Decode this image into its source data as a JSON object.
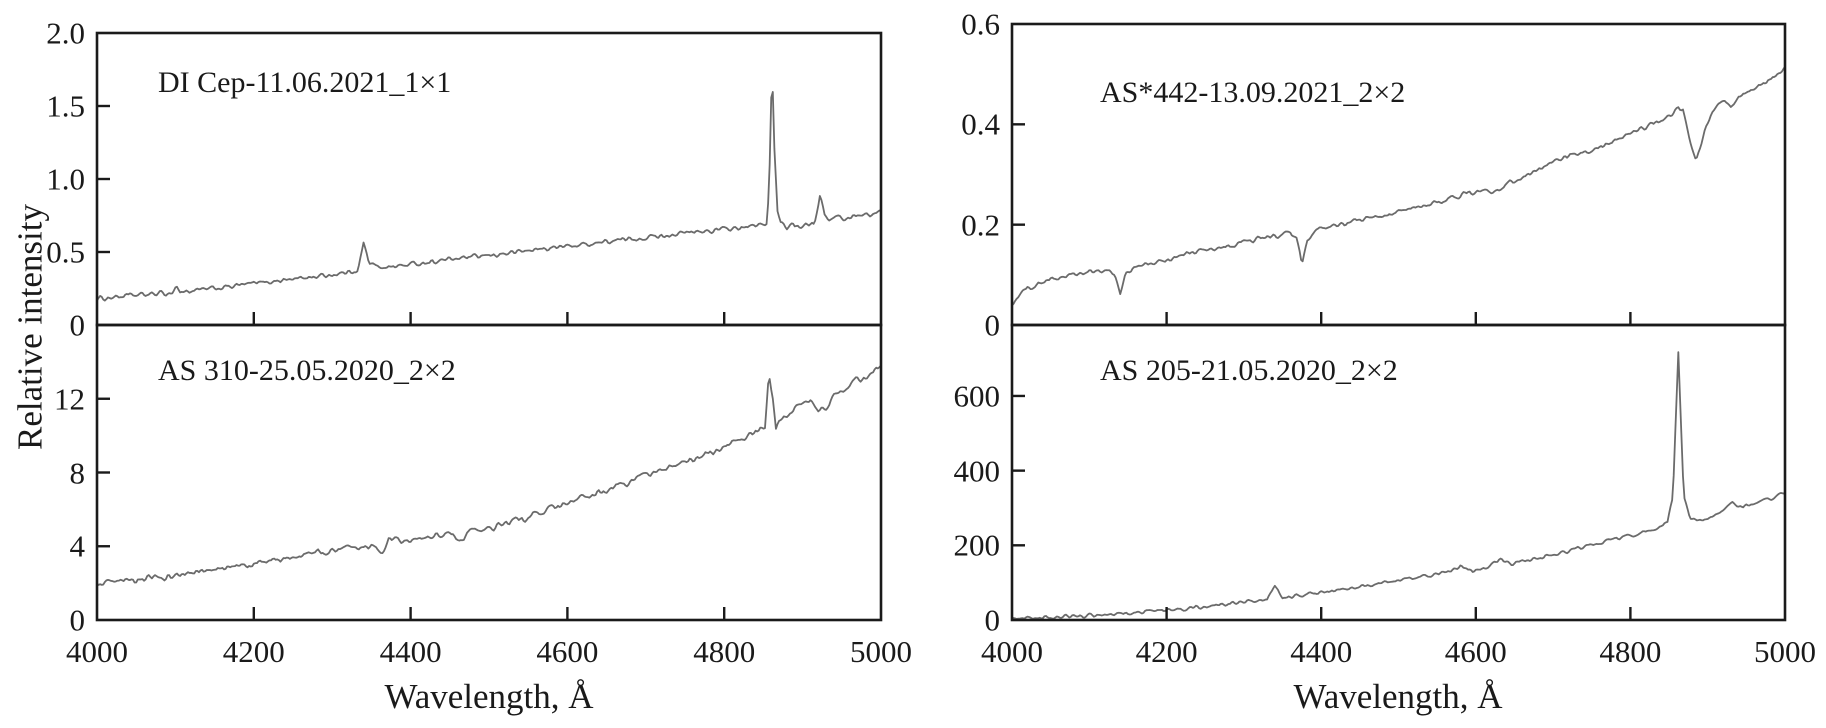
{
  "figure": {
    "ylabel": "Relative intensity",
    "xlabel": "Wavelength, Å",
    "colors": {
      "axis": "#1a1a1a",
      "curve": "#6b6b6b",
      "text": "#1a1a1a",
      "background": "#ffffff"
    }
  },
  "chart_data": {
    "type": "line",
    "xlabel": "Wavelength, Å",
    "ylabel": "Relative intensity",
    "xlim": [
      4000,
      5000
    ],
    "xticks": [
      4000,
      4200,
      4400,
      4600,
      4800,
      5000
    ],
    "xtick_labels": [
      "4000",
      "4200",
      "4400",
      "4600",
      "4800",
      "5000"
    ],
    "sample_step": 2,
    "panels": [
      {
        "label": "DI Cep-11.06.2021_1×1",
        "position": "top-left",
        "ylim": [
          0,
          2.0
        ],
        "yticks": [
          0,
          0.5,
          1.0,
          1.5,
          2.0
        ],
        "ytick_labels": [
          "0",
          "0.5",
          "1.0",
          "1.5",
          "2.0"
        ],
        "noise": 0.012,
        "anchors": [
          [
            4000,
            0.18
          ],
          [
            4040,
            0.2
          ],
          [
            4080,
            0.215
          ],
          [
            4096,
            0.22
          ],
          [
            4101,
            0.27
          ],
          [
            4106,
            0.225
          ],
          [
            4150,
            0.25
          ],
          [
            4200,
            0.285
          ],
          [
            4250,
            0.315
          ],
          [
            4300,
            0.345
          ],
          [
            4320,
            0.36
          ],
          [
            4333,
            0.38
          ],
          [
            4340,
            0.56
          ],
          [
            4347,
            0.43
          ],
          [
            4355,
            0.4
          ],
          [
            4380,
            0.4
          ],
          [
            4400,
            0.415
          ],
          [
            4450,
            0.45
          ],
          [
            4500,
            0.475
          ],
          [
            4550,
            0.51
          ],
          [
            4600,
            0.54
          ],
          [
            4650,
            0.57
          ],
          [
            4700,
            0.6
          ],
          [
            4750,
            0.63
          ],
          [
            4800,
            0.655
          ],
          [
            4830,
            0.67
          ],
          [
            4848,
            0.685
          ],
          [
            4855,
            0.7
          ],
          [
            4858,
            1.1
          ],
          [
            4861,
            1.78
          ],
          [
            4864,
            1.2
          ],
          [
            4868,
            0.78
          ],
          [
            4872,
            0.7
          ],
          [
            4880,
            0.665
          ],
          [
            4888,
            0.7
          ],
          [
            4895,
            0.67
          ],
          [
            4905,
            0.7
          ],
          [
            4915,
            0.7
          ],
          [
            4922,
            0.88
          ],
          [
            4928,
            0.76
          ],
          [
            4935,
            0.72
          ],
          [
            4945,
            0.745
          ],
          [
            4955,
            0.72
          ],
          [
            4970,
            0.76
          ],
          [
            4985,
            0.75
          ],
          [
            5000,
            0.78
          ]
        ]
      },
      {
        "label": "AS*442-13.09.2021_2×2",
        "position": "top-right",
        "ylim": [
          0,
          0.6
        ],
        "yticks": [
          0,
          0.2,
          0.4,
          0.6
        ],
        "ytick_labels": [
          "0",
          "0.2",
          "0.4",
          "0.6"
        ],
        "noise": 0.0035,
        "anchors": [
          [
            4000,
            0.042
          ],
          [
            4020,
            0.075
          ],
          [
            4050,
            0.09
          ],
          [
            4080,
            0.1
          ],
          [
            4100,
            0.105
          ],
          [
            4125,
            0.108
          ],
          [
            4133,
            0.1
          ],
          [
            4140,
            0.065
          ],
          [
            4147,
            0.1
          ],
          [
            4160,
            0.115
          ],
          [
            4200,
            0.13
          ],
          [
            4240,
            0.147
          ],
          [
            4270,
            0.152
          ],
          [
            4300,
            0.165
          ],
          [
            4320,
            0.172
          ],
          [
            4345,
            0.178
          ],
          [
            4360,
            0.182
          ],
          [
            4368,
            0.175
          ],
          [
            4375,
            0.12
          ],
          [
            4382,
            0.165
          ],
          [
            4395,
            0.19
          ],
          [
            4420,
            0.197
          ],
          [
            4450,
            0.21
          ],
          [
            4480,
            0.218
          ],
          [
            4500,
            0.227
          ],
          [
            4530,
            0.235
          ],
          [
            4560,
            0.25
          ],
          [
            4590,
            0.262
          ],
          [
            4610,
            0.27
          ],
          [
            4625,
            0.265
          ],
          [
            4640,
            0.28
          ],
          [
            4660,
            0.295
          ],
          [
            4680,
            0.31
          ],
          [
            4700,
            0.325
          ],
          [
            4730,
            0.34
          ],
          [
            4760,
            0.355
          ],
          [
            4790,
            0.375
          ],
          [
            4820,
            0.395
          ],
          [
            4840,
            0.408
          ],
          [
            4855,
            0.42
          ],
          [
            4862,
            0.435
          ],
          [
            4868,
            0.428
          ],
          [
            4875,
            0.38
          ],
          [
            4885,
            0.33
          ],
          [
            4895,
            0.38
          ],
          [
            4905,
            0.42
          ],
          [
            4915,
            0.44
          ],
          [
            4922,
            0.448
          ],
          [
            4930,
            0.432
          ],
          [
            4940,
            0.455
          ],
          [
            4960,
            0.47
          ],
          [
            4980,
            0.49
          ],
          [
            5000,
            0.51
          ]
        ]
      },
      {
        "label": "AS 310-25.05.2020_2×2",
        "position": "bottom-left",
        "ylim": [
          0,
          16
        ],
        "yticks": [
          0,
          4,
          8,
          12
        ],
        "ytick_labels": [
          "0",
          "4",
          "8",
          "12"
        ],
        "noise": 0.13,
        "anchors": [
          [
            4000,
            1.9
          ],
          [
            4050,
            2.15
          ],
          [
            4100,
            2.4
          ],
          [
            4150,
            2.7
          ],
          [
            4200,
            3.05
          ],
          [
            4250,
            3.4
          ],
          [
            4300,
            3.75
          ],
          [
            4330,
            3.95
          ],
          [
            4355,
            4.1
          ],
          [
            4363,
            3.7
          ],
          [
            4372,
            4.35
          ],
          [
            4390,
            4.2
          ],
          [
            4420,
            4.5
          ],
          [
            4440,
            4.65
          ],
          [
            4455,
            4.6
          ],
          [
            4465,
            4.2
          ],
          [
            4475,
            5.0
          ],
          [
            4490,
            4.75
          ],
          [
            4510,
            5.1
          ],
          [
            4540,
            5.45
          ],
          [
            4570,
            5.9
          ],
          [
            4600,
            6.3
          ],
          [
            4640,
            6.9
          ],
          [
            4680,
            7.5
          ],
          [
            4720,
            8.1
          ],
          [
            4760,
            8.7
          ],
          [
            4800,
            9.4
          ],
          [
            4830,
            10.0
          ],
          [
            4845,
            10.4
          ],
          [
            4852,
            10.6
          ],
          [
            4857,
            13.3
          ],
          [
            4862,
            12.0
          ],
          [
            4866,
            10.3
          ],
          [
            4872,
            10.8
          ],
          [
            4880,
            11.2
          ],
          [
            4890,
            11.5
          ],
          [
            4900,
            11.7
          ],
          [
            4910,
            11.9
          ],
          [
            4920,
            11.4
          ],
          [
            4930,
            11.5
          ],
          [
            4940,
            12.3
          ],
          [
            4955,
            12.6
          ],
          [
            4970,
            13.0
          ],
          [
            4985,
            13.3
          ],
          [
            5000,
            13.8
          ]
        ]
      },
      {
        "label": "AS 205-21.05.2020_2×2",
        "position": "bottom-right",
        "ylim": [
          0,
          790
        ],
        "yticks": [
          0,
          200,
          400,
          600
        ],
        "ytick_labels": [
          "0",
          "200",
          "400",
          "600"
        ],
        "noise": 3.5,
        "anchors": [
          [
            4000,
            3
          ],
          [
            4050,
            7
          ],
          [
            4100,
            12
          ],
          [
            4150,
            18
          ],
          [
            4200,
            26
          ],
          [
            4250,
            36
          ],
          [
            4300,
            48
          ],
          [
            4330,
            56
          ],
          [
            4340,
            95
          ],
          [
            4350,
            62
          ],
          [
            4380,
            68
          ],
          [
            4400,
            74
          ],
          [
            4430,
            82
          ],
          [
            4460,
            92
          ],
          [
            4500,
            105
          ],
          [
            4530,
            115
          ],
          [
            4560,
            125
          ],
          [
            4580,
            145
          ],
          [
            4595,
            132
          ],
          [
            4615,
            140
          ],
          [
            4630,
            165
          ],
          [
            4645,
            150
          ],
          [
            4665,
            158
          ],
          [
            4690,
            170
          ],
          [
            4720,
            185
          ],
          [
            4750,
            200
          ],
          [
            4780,
            218
          ],
          [
            4810,
            232
          ],
          [
            4835,
            245
          ],
          [
            4848,
            260
          ],
          [
            4855,
            330
          ],
          [
            4862,
            720
          ],
          [
            4869,
            330
          ],
          [
            4877,
            272
          ],
          [
            4890,
            268
          ],
          [
            4905,
            280
          ],
          [
            4920,
            290
          ],
          [
            4932,
            318
          ],
          [
            4945,
            300
          ],
          [
            4960,
            315
          ],
          [
            4975,
            322
          ],
          [
            4990,
            330
          ],
          [
            5000,
            342
          ]
        ]
      }
    ]
  }
}
